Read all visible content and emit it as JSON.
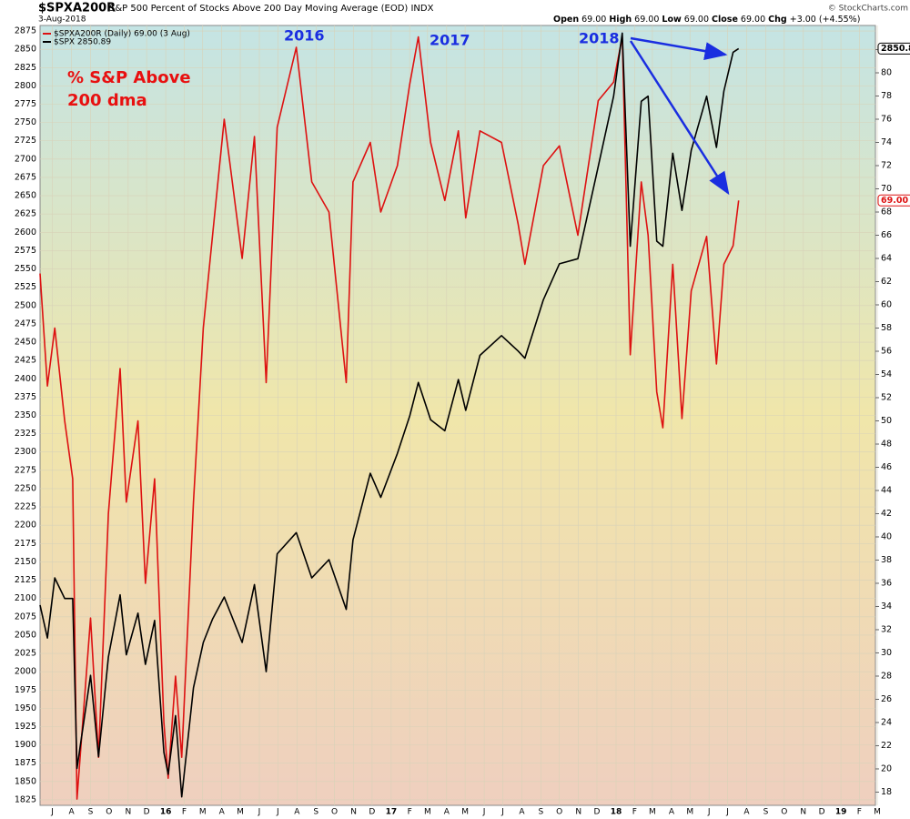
{
  "chart_data": {
    "type": "line",
    "title": "$SPXA200R",
    "subtitle": "S&P 500 Percent of Stocks Above 200 Day Moving Average (EOD) INDX",
    "date": "3-Aug-2018",
    "quote": [
      "Open",
      "69.00",
      "High",
      "69.00",
      "Low",
      "69.00",
      "Close",
      "69.00",
      "Chg",
      "+3.00 (+4.55%)"
    ],
    "source": "© StockCharts.com",
    "annotations": [
      "% S&P Above",
      "200 dma",
      "2016",
      "2017",
      "2018"
    ],
    "x": [
      "2015-06-26",
      "2015-07-08",
      "2015-07-20",
      "2015-08-05",
      "2015-08-18",
      "2015-08-25",
      "2015-09-16",
      "2015-09-29",
      "2015-10-15",
      "2015-11-03",
      "2015-11-13",
      "2015-12-02",
      "2015-12-14",
      "2015-12-29",
      "2016-01-13",
      "2016-01-20",
      "2016-02-01",
      "2016-02-11",
      "2016-03-01",
      "2016-03-17",
      "2016-04-01",
      "2016-04-20",
      "2016-05-19",
      "2016-06-08",
      "2016-06-27",
      "2016-07-15",
      "2016-08-15",
      "2016-09-09",
      "2016-10-07",
      "2016-11-04",
      "2016-11-15",
      "2016-12-13",
      "2016-12-30",
      "2017-01-26",
      "2017-02-15",
      "2017-03-01",
      "2017-03-21",
      "2017-04-13",
      "2017-05-05",
      "2017-05-17",
      "2017-06-09",
      "2017-07-14",
      "2017-08-10",
      "2017-08-21",
      "2017-09-20",
      "2017-10-16",
      "2017-11-15",
      "2017-12-18",
      "2018-01-12",
      "2018-01-26",
      "2018-02-08",
      "2018-02-26",
      "2018-03-09",
      "2018-03-23",
      "2018-04-02",
      "2018-04-18",
      "2018-05-03",
      "2018-05-18",
      "2018-06-12",
      "2018-06-28",
      "2018-07-10",
      "2018-07-25",
      "2018-08-03"
    ],
    "series": [
      {
        "name": "$SPXA200R (Daily) 69.00 (3 Aug)",
        "color": "#dd1111",
        "axis": "y2",
        "values": [
          62.7,
          53,
          58,
          50,
          45,
          17.4,
          33,
          21,
          42,
          54.5,
          43,
          50,
          36,
          45,
          24,
          19.2,
          28,
          21,
          43,
          58,
          66,
          76,
          64,
          74.5,
          53.3,
          75.3,
          82.2,
          70.6,
          68,
          53.3,
          70.6,
          74,
          68,
          72,
          79,
          83.1,
          74,
          69,
          75,
          67.5,
          75,
          74,
          67,
          63.5,
          72,
          73.7,
          66,
          77.6,
          79.2,
          83.1,
          55.7,
          70.6,
          66,
          52.5,
          49.4,
          63.5,
          50.2,
          61.2,
          65.9,
          54.9,
          63.5,
          65.1,
          69
        ]
      },
      {
        "name": "$SPX 2850.89",
        "color": "#000000",
        "values": [
          2091,
          2046,
          2128,
          2100,
          2100,
          1868,
          1995,
          1884,
          2020,
          2105,
          2023,
          2080,
          2010,
          2070,
          1890,
          1860,
          1940,
          1829,
          1978,
          2040,
          2072,
          2102,
          2040,
          2119,
          2000,
          2161,
          2190,
          2128,
          2153,
          2085,
          2180,
          2271,
          2238,
          2298,
          2349,
          2395,
          2344,
          2329,
          2399,
          2357,
          2432,
          2459,
          2438,
          2428,
          2508,
          2557,
          2564,
          2690,
          2786,
          2872,
          2581,
          2779,
          2786,
          2588,
          2581,
          2708,
          2630,
          2712,
          2786,
          2716,
          2793,
          2846,
          2850.89
        ]
      }
    ],
    "badges": [
      {
        "value": 69,
        "label": "69.00"
      },
      {
        "value": 2850.89,
        "label": "2850.89"
      }
    ],
    "xlim": [
      "2015-06-26",
      "2019-03-13"
    ],
    "xticks": [
      {
        "value": "2015-07-16",
        "label": "J"
      },
      {
        "value": "2015-08-16",
        "label": "A"
      },
      {
        "value": "2015-09-16",
        "label": "S"
      },
      {
        "value": "2015-10-16",
        "label": "O"
      },
      {
        "value": "2015-11-16",
        "label": "N"
      },
      {
        "value": "2015-12-16",
        "label": "D"
      },
      {
        "value": "2016-01-16",
        "label": "16"
      },
      {
        "value": "2016-02-15",
        "label": "F"
      },
      {
        "value": "2016-03-16",
        "label": "M"
      },
      {
        "value": "2016-04-16",
        "label": "A"
      },
      {
        "value": "2016-05-16",
        "label": "M"
      },
      {
        "value": "2016-06-16",
        "label": "J"
      },
      {
        "value": "2016-07-16",
        "label": "J"
      },
      {
        "value": "2016-08-16",
        "label": "A"
      },
      {
        "value": "2016-09-16",
        "label": "S"
      },
      {
        "value": "2016-10-16",
        "label": "O"
      },
      {
        "value": "2016-11-16",
        "label": "N"
      },
      {
        "value": "2016-12-16",
        "label": "D"
      },
      {
        "value": "2017-01-16",
        "label": "17"
      },
      {
        "value": "2017-02-15",
        "label": "F"
      },
      {
        "value": "2017-03-16",
        "label": "M"
      },
      {
        "value": "2017-04-16",
        "label": "A"
      },
      {
        "value": "2017-05-16",
        "label": "M"
      },
      {
        "value": "2017-06-16",
        "label": "J"
      },
      {
        "value": "2017-07-16",
        "label": "J"
      },
      {
        "value": "2017-08-16",
        "label": "A"
      },
      {
        "value": "2017-09-16",
        "label": "S"
      },
      {
        "value": "2017-10-16",
        "label": "O"
      },
      {
        "value": "2017-11-16",
        "label": "N"
      },
      {
        "value": "2017-12-16",
        "label": "D"
      },
      {
        "value": "2018-01-16",
        "label": "18"
      },
      {
        "value": "2018-02-15",
        "label": "F"
      },
      {
        "value": "2018-03-16",
        "label": "M"
      },
      {
        "value": "2018-04-16",
        "label": "A"
      },
      {
        "value": "2018-05-16",
        "label": "M"
      },
      {
        "value": "2018-06-16",
        "label": "J"
      },
      {
        "value": "2018-07-16",
        "label": "J"
      },
      {
        "value": "2018-08-16",
        "label": "A"
      },
      {
        "value": "2018-09-16",
        "label": "S"
      },
      {
        "value": "2018-10-16",
        "label": "O"
      },
      {
        "value": "2018-11-16",
        "label": "N"
      },
      {
        "value": "2018-12-16",
        "label": "D"
      },
      {
        "value": "2019-01-16",
        "label": "19"
      },
      {
        "value": "2019-02-15",
        "label": "F"
      },
      {
        "value": "2019-03-16",
        "label": "M"
      }
    ],
    "ylim": [
      1817.5,
      2882.5
    ],
    "yticks": [
      1825,
      1850,
      1875,
      1900,
      1925,
      1950,
      1975,
      2000,
      2025,
      2050,
      2075,
      2100,
      2125,
      2150,
      2175,
      2200,
      2225,
      2250,
      2275,
      2300,
      2325,
      2350,
      2375,
      2400,
      2425,
      2450,
      2475,
      2500,
      2525,
      2550,
      2575,
      2600,
      2625,
      2650,
      2675,
      2700,
      2725,
      2750,
      2775,
      2800,
      2825,
      2850,
      2875
    ],
    "y2lim": [
      16.86,
      84.08
    ],
    "y2ticks": [
      18,
      20,
      22,
      24,
      26,
      28,
      30,
      32,
      34,
      36,
      38,
      40,
      42,
      44,
      46,
      48,
      50,
      52,
      54,
      56,
      58,
      60,
      62,
      64,
      66,
      68,
      70,
      72,
      74,
      76,
      78,
      80,
      82
    ],
    "grid": true
  }
}
